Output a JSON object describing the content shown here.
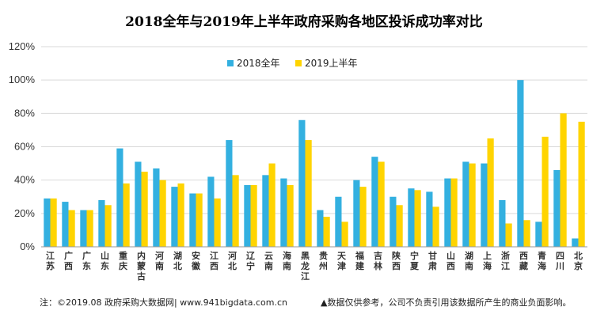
{
  "colors": {
    "series_2018": "#33b0e0",
    "series_2019": "#ffd400",
    "grid": "#d9d9d9",
    "axis": "#999999"
  },
  "footer": {
    "left": "注：©2019.08 政府采购大数据网| www.941bigdata.com.cn",
    "right": "▲数据仅供参考，公司不负责引用该数据所产生的商业负面影响。"
  },
  "chart_data": {
    "type": "bar",
    "title": "2018全年与2019年上半年政府采购各地区投诉成功率对比",
    "xlabel": "",
    "ylabel": "",
    "ylim": [
      0,
      120
    ],
    "yticks": [
      "0%",
      "20%",
      "40%",
      "60%",
      "80%",
      "100%",
      "120%"
    ],
    "grid": true,
    "legend_position": "top-right",
    "categories": [
      "江苏",
      "广西",
      "广东",
      "山东",
      "重庆",
      "内蒙古",
      "河南",
      "湖北",
      "安徽",
      "江西",
      "河北",
      "辽宁",
      "云南",
      "海南",
      "黑龙江",
      "贵州",
      "天津",
      "福建",
      "吉林",
      "陕西",
      "宁夏",
      "甘肃",
      "山西",
      "湖南",
      "上海",
      "浙江",
      "西藏",
      "青海",
      "四川",
      "北京"
    ],
    "series": [
      {
        "name": "2018全年",
        "values": [
          29,
          27,
          22,
          28,
          59,
          51,
          47,
          36,
          32,
          42,
          64,
          37,
          43,
          41,
          76,
          22,
          30,
          40,
          54,
          30,
          35,
          33,
          41,
          51,
          50,
          28,
          100,
          15,
          46,
          5
        ]
      },
      {
        "name": "2019上半年",
        "values": [
          29,
          22,
          22,
          25,
          38,
          45,
          40,
          38,
          32,
          29,
          43,
          37,
          50,
          37,
          64,
          18,
          15,
          36,
          51,
          25,
          34,
          24,
          41,
          50,
          65,
          14,
          16,
          66,
          80,
          75
        ]
      }
    ]
  }
}
